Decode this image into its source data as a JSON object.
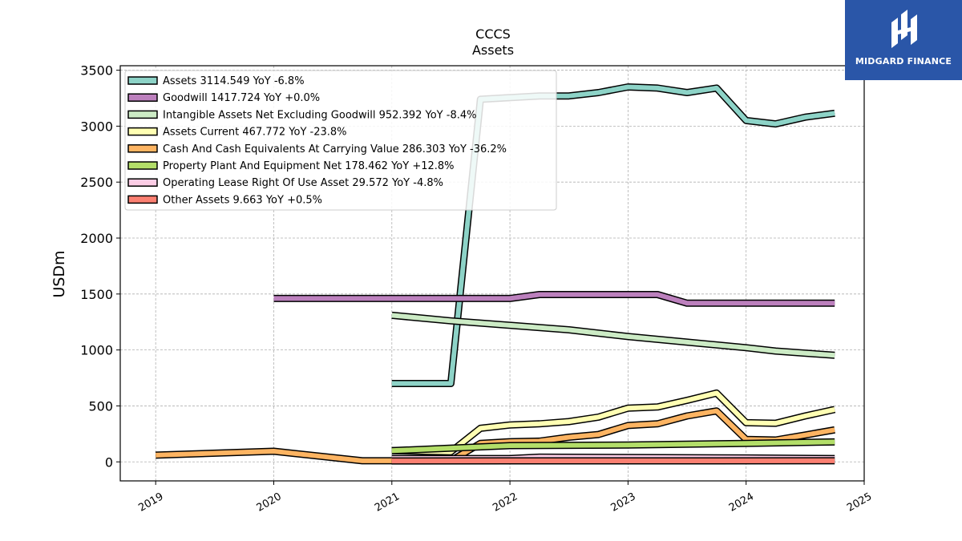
{
  "brand": {
    "name": "MIDGARD FINANCE",
    "color": "#2a56a8"
  },
  "chart_data": {
    "type": "line",
    "title": "CCCS",
    "subtitle": "Assets",
    "xlabel": "",
    "ylabel": "USDm",
    "xlim": [
      2018.7,
      2025.0
    ],
    "ylim": [
      -170,
      3540
    ],
    "xticks": [
      2019,
      2020,
      2021,
      2022,
      2023,
      2024,
      2025
    ],
    "yticks": [
      0,
      500,
      1000,
      1500,
      2000,
      2500,
      3000,
      3500
    ],
    "grid": true,
    "legend_position": "top-left",
    "series": [
      {
        "name": "Assets",
        "legend": "Assets  3114.549 YoY -6.8%",
        "color": "#8dd3c7",
        "points": [
          [
            2021.0,
            700
          ],
          [
            2021.5,
            700
          ],
          [
            2021.75,
            3240
          ],
          [
            2022.25,
            3270
          ],
          [
            2022.5,
            3270
          ],
          [
            2022.75,
            3300
          ],
          [
            2023.0,
            3350
          ],
          [
            2023.25,
            3340
          ],
          [
            2023.5,
            3300
          ],
          [
            2023.75,
            3340
          ],
          [
            2024.0,
            3050
          ],
          [
            2024.25,
            3020
          ],
          [
            2024.5,
            3080
          ],
          [
            2024.75,
            3115
          ]
        ]
      },
      {
        "name": "Goodwill",
        "legend": "Goodwill  1417.724 YoY +0.0%",
        "color": "#bc80bd",
        "points": [
          [
            2020.0,
            1460
          ],
          [
            2022.0,
            1460
          ],
          [
            2022.25,
            1495
          ],
          [
            2023.25,
            1495
          ],
          [
            2023.5,
            1418
          ],
          [
            2024.75,
            1418
          ]
        ]
      },
      {
        "name": "Intangible Assets Net Excluding Goodwill",
        "legend": "Intangible Assets Net Excluding Goodwill  952.392 YoY -8.4%",
        "color": "#ccebc5",
        "points": [
          [
            2021.0,
            1310
          ],
          [
            2021.5,
            1260
          ],
          [
            2022.0,
            1220
          ],
          [
            2022.5,
            1180
          ],
          [
            2023.0,
            1120
          ],
          [
            2023.5,
            1070
          ],
          [
            2024.0,
            1020
          ],
          [
            2024.25,
            990
          ],
          [
            2024.75,
            952
          ]
        ]
      },
      {
        "name": "Assets Current",
        "legend": "Assets Current  467.772 YoY -23.8%",
        "color": "#ffffb3",
        "points": [
          [
            2021.0,
            100
          ],
          [
            2021.5,
            90
          ],
          [
            2021.75,
            300
          ],
          [
            2022.0,
            330
          ],
          [
            2022.25,
            340
          ],
          [
            2022.5,
            360
          ],
          [
            2022.75,
            400
          ],
          [
            2023.0,
            480
          ],
          [
            2023.25,
            490
          ],
          [
            2023.5,
            550
          ],
          [
            2023.75,
            615
          ],
          [
            2024.0,
            350
          ],
          [
            2024.25,
            345
          ],
          [
            2024.5,
            410
          ],
          [
            2024.75,
            468
          ]
        ]
      },
      {
        "name": "Cash And Cash Equivalents At Carrying Value",
        "legend": "Cash And Cash Equivalents At Carrying Value  286.303 YoY -36.2%",
        "color": "#fdb462",
        "points": [
          [
            2019.0,
            60
          ],
          [
            2020.0,
            95
          ],
          [
            2020.75,
            10
          ],
          [
            2021.0,
            10
          ],
          [
            2021.5,
            10
          ],
          [
            2021.75,
            165
          ],
          [
            2022.0,
            180
          ],
          [
            2022.25,
            185
          ],
          [
            2022.5,
            220
          ],
          [
            2022.75,
            245
          ],
          [
            2023.0,
            325
          ],
          [
            2023.25,
            340
          ],
          [
            2023.5,
            410
          ],
          [
            2023.75,
            455
          ],
          [
            2024.0,
            200
          ],
          [
            2024.25,
            195
          ],
          [
            2024.5,
            240
          ],
          [
            2024.75,
            286
          ]
        ]
      },
      {
        "name": "Property Plant And Equipment Net",
        "legend": "Property Plant And Equipment Net  178.462 YoY +12.8%",
        "color": "#b3de69",
        "points": [
          [
            2021.0,
            100
          ],
          [
            2022.0,
            145
          ],
          [
            2023.0,
            150
          ],
          [
            2024.0,
            165
          ],
          [
            2024.75,
            178
          ]
        ]
      },
      {
        "name": "Operating Lease Right Of Use Asset",
        "legend": "Operating Lease Right Of Use Asset  29.572 YoY -4.8%",
        "color": "#fccde5",
        "points": [
          [
            2021.0,
            30
          ],
          [
            2022.0,
            30
          ],
          [
            2022.25,
            42
          ],
          [
            2024.0,
            35
          ],
          [
            2024.75,
            30
          ]
        ]
      },
      {
        "name": "Other Assets",
        "legend": "Other Assets  9.663 YoY +0.5%",
        "color": "#fb8072",
        "points": [
          [
            2021.0,
            8
          ],
          [
            2024.75,
            10
          ]
        ]
      }
    ]
  }
}
